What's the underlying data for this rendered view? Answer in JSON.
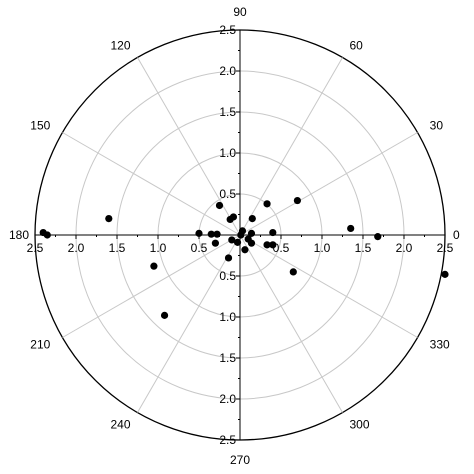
{
  "chart_data": {
    "type": "scatter",
    "coordinate_system": "polar",
    "title": "",
    "angle_unit": "degrees",
    "angular_ticks": [
      {
        "angle": 0,
        "label": "0"
      },
      {
        "angle": 30,
        "label": "30"
      },
      {
        "angle": 60,
        "label": "60"
      },
      {
        "angle": 90,
        "label": "90"
      },
      {
        "angle": 120,
        "label": "120"
      },
      {
        "angle": 150,
        "label": "150"
      },
      {
        "angle": 180,
        "label": "180"
      },
      {
        "angle": 210,
        "label": "210"
      },
      {
        "angle": 240,
        "label": "240"
      },
      {
        "angle": 270,
        "label": "270"
      },
      {
        "angle": 300,
        "label": "300"
      },
      {
        "angle": 330,
        "label": "330"
      }
    ],
    "radial_range": [
      0,
      2.5
    ],
    "radial_ticks": [
      0.5,
      1.0,
      1.5,
      2.0,
      2.5
    ],
    "radial_tick_labels": [
      "0.5",
      "1.0",
      "1.5",
      "2.0",
      "2.5"
    ],
    "grid": true,
    "marker_color": "#000000",
    "grid_color": "#c8c8c8",
    "axis_color": "#000000",
    "series": [
      {
        "points": [
          {
            "x": 2.5,
            "y": -0.48
          },
          {
            "x": 1.68,
            "y": -0.02
          },
          {
            "x": 1.35,
            "y": 0.08
          },
          {
            "x": 0.7,
            "y": 0.42
          },
          {
            "x": 0.33,
            "y": 0.38
          },
          {
            "x": 0.65,
            "y": -0.45
          },
          {
            "x": 0.4,
            "y": -0.12
          },
          {
            "x": 0.33,
            "y": -0.12
          },
          {
            "x": 0.4,
            "y": 0.03
          },
          {
            "x": 0.15,
            "y": 0.2
          },
          {
            "x": 0.14,
            "y": 0.02
          },
          {
            "x": 0.14,
            "y": -0.1
          },
          {
            "x": 0.1,
            "y": -0.05
          },
          {
            "x": 0.06,
            "y": -0.18
          },
          {
            "x": 0.03,
            "y": 0.05
          },
          {
            "x": 0.01,
            "y": 0.0
          },
          {
            "x": -0.03,
            "y": -0.09
          },
          {
            "x": -0.08,
            "y": 0.22
          },
          {
            "x": -0.12,
            "y": 0.19
          },
          {
            "x": -0.1,
            "y": -0.06
          },
          {
            "x": -0.14,
            "y": -0.28
          },
          {
            "x": -0.25,
            "y": 0.36
          },
          {
            "x": -0.28,
            "y": 0.01
          },
          {
            "x": -0.3,
            "y": -0.1
          },
          {
            "x": -0.35,
            "y": 0.01
          },
          {
            "x": -0.5,
            "y": 0.02
          },
          {
            "x": -1.05,
            "y": -0.38
          },
          {
            "x": -0.92,
            "y": -0.98
          },
          {
            "x": -1.6,
            "y": 0.2
          },
          {
            "x": -2.35,
            "y": 0.0
          },
          {
            "x": -2.4,
            "y": 0.03
          }
        ]
      }
    ]
  }
}
